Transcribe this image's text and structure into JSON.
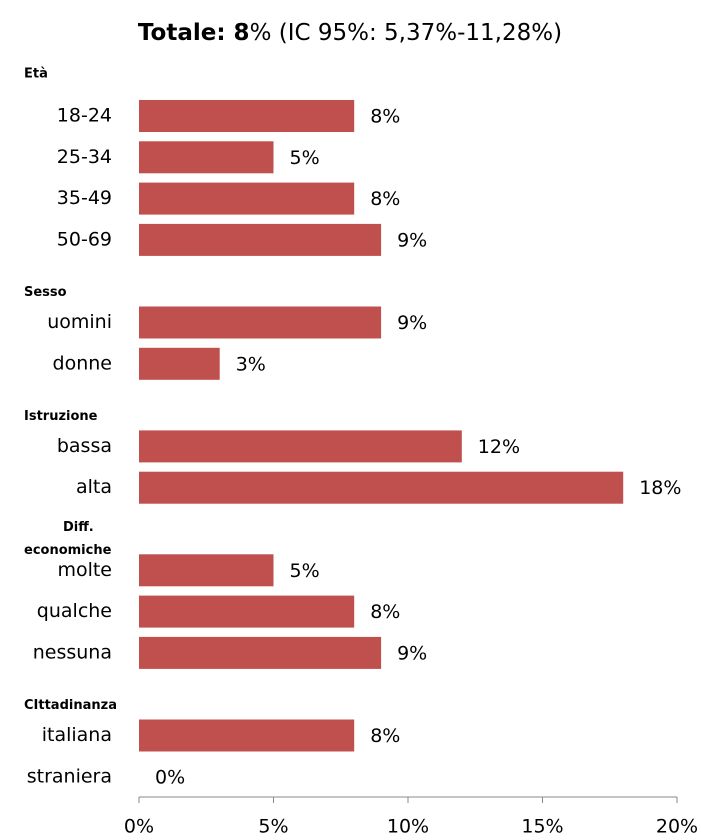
{
  "chart_data": {
    "type": "bar",
    "orientation": "horizontal",
    "title_bold": "Totale: 8",
    "title_rest": "% (IC 95%: 5,37%-11,28%)",
    "color": "#c0504d",
    "groups": [
      {
        "name": [
          "Età"
        ],
        "categories": [
          "18-24",
          "25-34",
          "35-49",
          "50-69"
        ],
        "values": [
          8,
          5,
          8,
          9
        ],
        "value_labels": [
          "8%",
          "5%",
          "8%",
          "9%"
        ]
      },
      {
        "name": [
          "Sesso"
        ],
        "categories": [
          "uomini",
          "donne"
        ],
        "values": [
          9,
          3
        ],
        "value_labels": [
          "9%",
          "3%"
        ]
      },
      {
        "name": [
          "Istruzione"
        ],
        "categories": [
          "bassa",
          "alta"
        ],
        "values": [
          12,
          18
        ],
        "value_labels": [
          "12%",
          "18%"
        ]
      },
      {
        "name": [
          "Diff.",
          "economiche"
        ],
        "categories": [
          "molte",
          "qualche",
          "nessuna"
        ],
        "values": [
          5,
          8,
          9
        ],
        "value_labels": [
          "5%",
          "8%",
          "9%"
        ]
      },
      {
        "name": [
          "CIttadinanza"
        ],
        "categories": [
          "italiana",
          "straniera"
        ],
        "values": [
          8,
          0
        ],
        "value_labels": [
          "8%",
          "0%"
        ]
      }
    ],
    "xlim": [
      0,
      20
    ],
    "xticks": [
      {
        "value": 0,
        "label": "0%"
      },
      {
        "value": 5,
        "label": "5%"
      },
      {
        "value": 10,
        "label": "10%"
      },
      {
        "value": 15,
        "label": "15%"
      },
      {
        "value": 20,
        "label": "20%"
      }
    ]
  }
}
